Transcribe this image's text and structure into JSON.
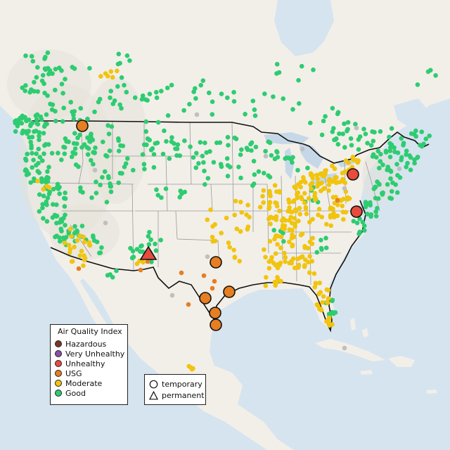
{
  "legend": {
    "title": "Air Quality Index",
    "categories": [
      {
        "label": "Hazardous",
        "color": "#7e3527"
      },
      {
        "label": "Very Unhealthy",
        "color": "#8b4fa8"
      },
      {
        "label": "Unhealthy",
        "color": "#e74c3c"
      },
      {
        "label": "USG",
        "color": "#e67e22"
      },
      {
        "label": "Moderate",
        "color": "#f1c40f"
      },
      {
        "label": "Good",
        "color": "#2ecc71"
      }
    ]
  },
  "site_type_legend": {
    "temporary": "temporary",
    "permanent": "permanent",
    "temporary_icon": "circle-icon",
    "permanent_icon": "triangle-icon"
  },
  "colors": {
    "water": "#d6e4ef",
    "land": "#f2efe9",
    "terrain": "#e4e1d9",
    "state_border": "#9a9a9a",
    "country_border": "#111111",
    "unknown_monitor": "#bfbfbf"
  }
}
